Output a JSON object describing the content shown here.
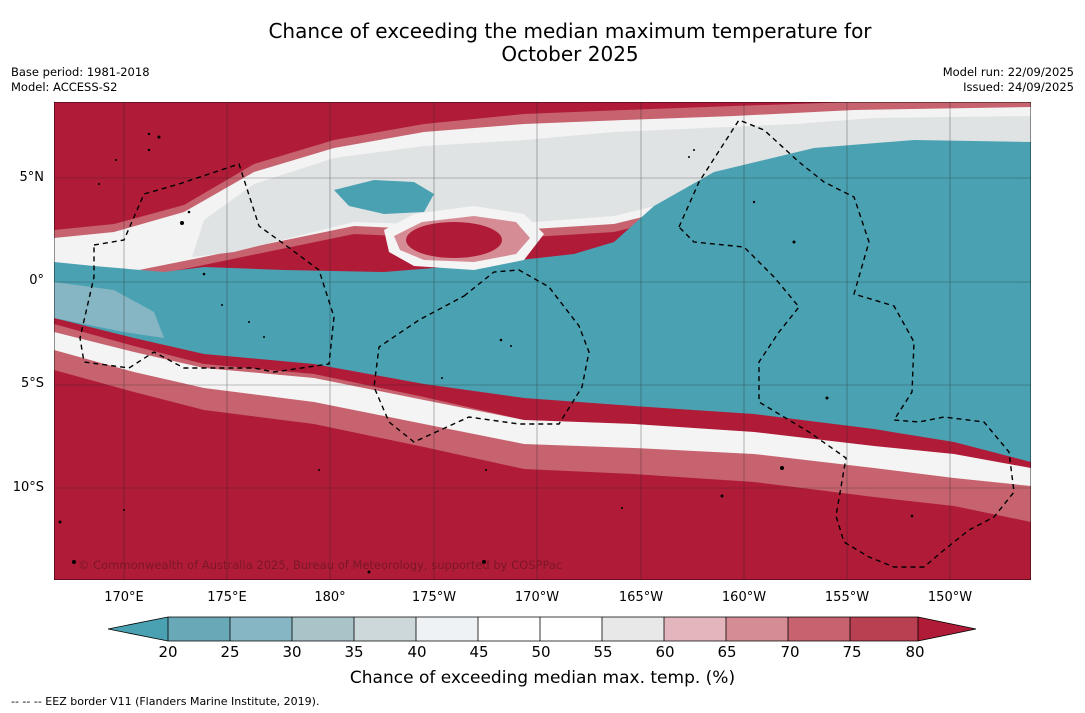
{
  "title_line1": "Chance of exceeding the median maximum temperature for",
  "title_line2": "October 2025",
  "meta_left": {
    "base_period": "Base period: 1981-2018",
    "model": "Model: ACCESS-S2"
  },
  "meta_right": {
    "model_run": "Model run: 22/09/2025",
    "issued": "Issued: 24/09/2025"
  },
  "copyright": "© Commonwealth of Australia 2025, Bureau of Meteorology, supported by COSPPac",
  "lat_labels": [
    "5°N",
    "0°",
    "5°S",
    "10°S"
  ],
  "lon_labels": [
    "170°E",
    "175°E",
    "180°",
    "175°W",
    "170°W",
    "165°W",
    "160°W",
    "155°W",
    "150°W"
  ],
  "colorbar": {
    "ticks": [
      "20",
      "25",
      "30",
      "35",
      "40",
      "45",
      "50",
      "55",
      "60",
      "65",
      "70",
      "75",
      "80"
    ],
    "title": "Chance of exceeding median max. temp. (%)",
    "colors": {
      "below": "#4aa1b2",
      "20-25": "#69a9b7",
      "25-30": "#86b6c3",
      "30-35": "#a8c4c9",
      "35-40": "#cdd8da",
      "40-45": "#eef2f5",
      "45-50": "#ffffff",
      "50-55": "#ffffff",
      "55-60": "#e8e8e8",
      "60-65": "#e2b6bc",
      "65-70": "#d58c95",
      "70-75": "#c6636f",
      "75-80": "#b94050",
      "above": "#b01c38"
    }
  },
  "footer": "-- -- -- EEZ border V11 (Flanders Marine Institute, 2019)."
}
